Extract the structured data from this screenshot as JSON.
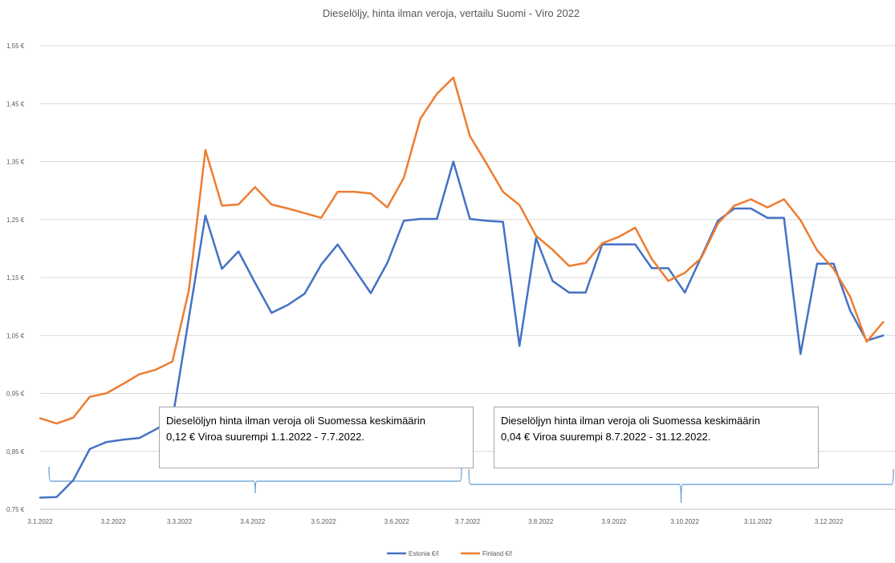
{
  "chart_data": {
    "type": "line",
    "title": "Dieselöljy, hinta ilman veroja, vertailu Suomi - Viro 2022",
    "xlabel": "",
    "ylabel": "",
    "x_ticks": [
      "3.1.2022",
      "3.2.2022",
      "3.3.2022",
      "3.4.2022",
      "3.5.2022",
      "3.6.2022",
      "3.7.2022",
      "3.8.2022",
      "3.9.2022",
      "3.10.2022",
      "3.11.2022",
      "3.12.2022"
    ],
    "y_ticks": [
      "0,75 €",
      "0,85 €",
      "0,95 €",
      "1,05 €",
      "1,15 €",
      "1,25 €",
      "1,35 €",
      "1,45 €",
      "1,55 €"
    ],
    "ylim": [
      0.75,
      1.55
    ],
    "grid": true,
    "legend_position": "bottom",
    "series": [
      {
        "name": "Estonia €/l",
        "color": "#4472c4",
        "points": [
          [
            "2022-01-03",
            0.77
          ],
          [
            "2022-01-10",
            0.771
          ],
          [
            "2022-01-17",
            0.8
          ],
          [
            "2022-01-24",
            0.854
          ],
          [
            "2022-01-31",
            0.866
          ],
          [
            "2022-02-07",
            0.87
          ],
          [
            "2022-02-14",
            0.873
          ],
          [
            "2022-02-21",
            0.888
          ],
          [
            "2022-02-28",
            0.905
          ],
          [
            "2022-03-07",
            1.08
          ],
          [
            "2022-03-14",
            1.257
          ],
          [
            "2022-03-21",
            1.165
          ],
          [
            "2022-03-28",
            1.195
          ],
          [
            "2022-04-04",
            1.141
          ],
          [
            "2022-04-11",
            1.089
          ],
          [
            "2022-04-18",
            1.103
          ],
          [
            "2022-04-25",
            1.122
          ],
          [
            "2022-05-02",
            1.172
          ],
          [
            "2022-05-09",
            1.207
          ],
          [
            "2022-05-16",
            1.165
          ],
          [
            "2022-05-23",
            1.123
          ],
          [
            "2022-05-30",
            1.175
          ],
          [
            "2022-06-06",
            1.248
          ],
          [
            "2022-06-13",
            1.251
          ],
          [
            "2022-06-20",
            1.251
          ],
          [
            "2022-06-27",
            1.35
          ],
          [
            "2022-07-04",
            1.251
          ],
          [
            "2022-07-11",
            1.248
          ],
          [
            "2022-07-18",
            1.246
          ],
          [
            "2022-07-25",
            1.032
          ],
          [
            "2022-08-01",
            1.218
          ],
          [
            "2022-08-08",
            1.144
          ],
          [
            "2022-08-15",
            1.124
          ],
          [
            "2022-08-22",
            1.124
          ],
          [
            "2022-08-29",
            1.207
          ],
          [
            "2022-09-05",
            1.207
          ],
          [
            "2022-09-12",
            1.207
          ],
          [
            "2022-09-19",
            1.166
          ],
          [
            "2022-09-26",
            1.166
          ],
          [
            "2022-10-03",
            1.124
          ],
          [
            "2022-10-10",
            1.186
          ],
          [
            "2022-10-17",
            1.248
          ],
          [
            "2022-10-24",
            1.269
          ],
          [
            "2022-10-31",
            1.269
          ],
          [
            "2022-11-07",
            1.253
          ],
          [
            "2022-11-14",
            1.253
          ],
          [
            "2022-11-21",
            1.018
          ],
          [
            "2022-11-28",
            1.174
          ],
          [
            "2022-12-05",
            1.174
          ],
          [
            "2022-12-12",
            1.093
          ],
          [
            "2022-12-19",
            1.041
          ],
          [
            "2022-12-26",
            1.05
          ]
        ]
      },
      {
        "name": "Finland €/l",
        "color": "#ed7d31",
        "points": [
          [
            "2022-01-03",
            0.907
          ],
          [
            "2022-01-10",
            0.898
          ],
          [
            "2022-01-17",
            0.908
          ],
          [
            "2022-01-24",
            0.944
          ],
          [
            "2022-01-31",
            0.95
          ],
          [
            "2022-02-07",
            0.966
          ],
          [
            "2022-02-14",
            0.983
          ],
          [
            "2022-02-21",
            0.991
          ],
          [
            "2022-02-28",
            1.005
          ],
          [
            "2022-03-07",
            1.128
          ],
          [
            "2022-03-14",
            1.37
          ],
          [
            "2022-03-21",
            1.274
          ],
          [
            "2022-03-28",
            1.276
          ],
          [
            "2022-04-04",
            1.306
          ],
          [
            "2022-04-11",
            1.276
          ],
          [
            "2022-04-18",
            1.269
          ],
          [
            "2022-04-25",
            1.261
          ],
          [
            "2022-05-02",
            1.253
          ],
          [
            "2022-05-09",
            1.298
          ],
          [
            "2022-05-16",
            1.298
          ],
          [
            "2022-05-23",
            1.295
          ],
          [
            "2022-05-30",
            1.271
          ],
          [
            "2022-06-06",
            1.322
          ],
          [
            "2022-06-13",
            1.424
          ],
          [
            "2022-06-20",
            1.467
          ],
          [
            "2022-06-27",
            1.495
          ],
          [
            "2022-07-04",
            1.394
          ],
          [
            "2022-07-11",
            1.347
          ],
          [
            "2022-07-18",
            1.298
          ],
          [
            "2022-07-25",
            1.275
          ],
          [
            "2022-08-01",
            1.222
          ],
          [
            "2022-08-08",
            1.198
          ],
          [
            "2022-08-15",
            1.17
          ],
          [
            "2022-08-22",
            1.175
          ],
          [
            "2022-08-29",
            1.209
          ],
          [
            "2022-09-05",
            1.22
          ],
          [
            "2022-09-12",
            1.236
          ],
          [
            "2022-09-19",
            1.182
          ],
          [
            "2022-09-26",
            1.144
          ],
          [
            "2022-10-03",
            1.158
          ],
          [
            "2022-10-10",
            1.184
          ],
          [
            "2022-10-17",
            1.243
          ],
          [
            "2022-10-24",
            1.274
          ],
          [
            "2022-10-31",
            1.285
          ],
          [
            "2022-11-07",
            1.271
          ],
          [
            "2022-11-14",
            1.285
          ],
          [
            "2022-11-21",
            1.249
          ],
          [
            "2022-11-28",
            1.197
          ],
          [
            "2022-12-05",
            1.165
          ],
          [
            "2022-12-12",
            1.117
          ],
          [
            "2022-12-19",
            1.039
          ],
          [
            "2022-12-26",
            1.073
          ]
        ]
      }
    ],
    "annotations": [
      {
        "line1": "Dieselöljyn hinta ilman veroja oli Suomessa keskimäärin",
        "line2": "0,12 € Viroa suurempi 1.1.2022 - 7.7.2022.",
        "start": "2022-01-03",
        "end": "2022-07-04"
      },
      {
        "line1": "Dieselöljyn hinta ilman veroja oli Suomessa keskimäärin",
        "line2": "0,04 € Viroa suurempi 8.7.2022 - 31.12.2022.",
        "start": "2022-07-04",
        "end": "2022-12-31"
      }
    ]
  }
}
